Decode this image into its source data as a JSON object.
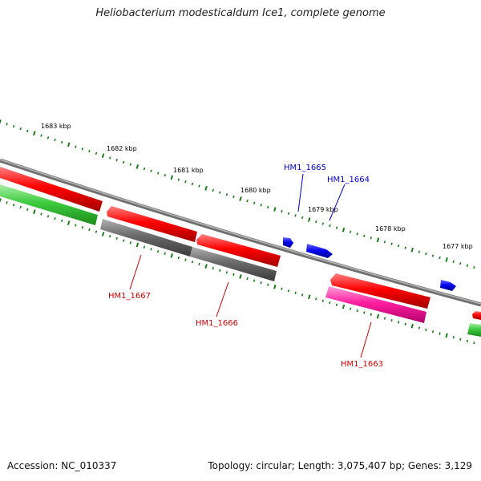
{
  "title": "Heliobacterium modesticaldum Ice1, complete genome",
  "footer": {
    "accession": "Accession: NC_010337",
    "summary": "Topology: circular; Length: 3,075,407 bp; Genes: 3,129"
  },
  "scale": {
    "labels": [
      "1683 kbp",
      "1682 kbp",
      "1681 kbp",
      "1680 kbp",
      "1679 kbp",
      "1678 kbp",
      "1677 kbp"
    ]
  },
  "gene_labels": [
    {
      "name": "HM1_1665",
      "color": "#0000cc"
    },
    {
      "name": "HM1_1664",
      "color": "#0000cc"
    },
    {
      "name": "HM1_1667",
      "color": "#cc0000"
    },
    {
      "name": "HM1_1666",
      "color": "#cc0000"
    },
    {
      "name": "HM1_1663",
      "color": "#cc0000"
    }
  ],
  "colors": {
    "backbone": "#8a8a8a",
    "cds_forward": "#ff0000",
    "cds_reverse": "#ff0000",
    "gene_gray": "#6e6e6e",
    "gene_green": "#3ecb3e",
    "gene_pink": "#ff1fa0",
    "small_blue": "#0000ee",
    "tick_green": "#1a7a1a",
    "label_blue": "#0000cc",
    "label_red": "#cc0000"
  }
}
